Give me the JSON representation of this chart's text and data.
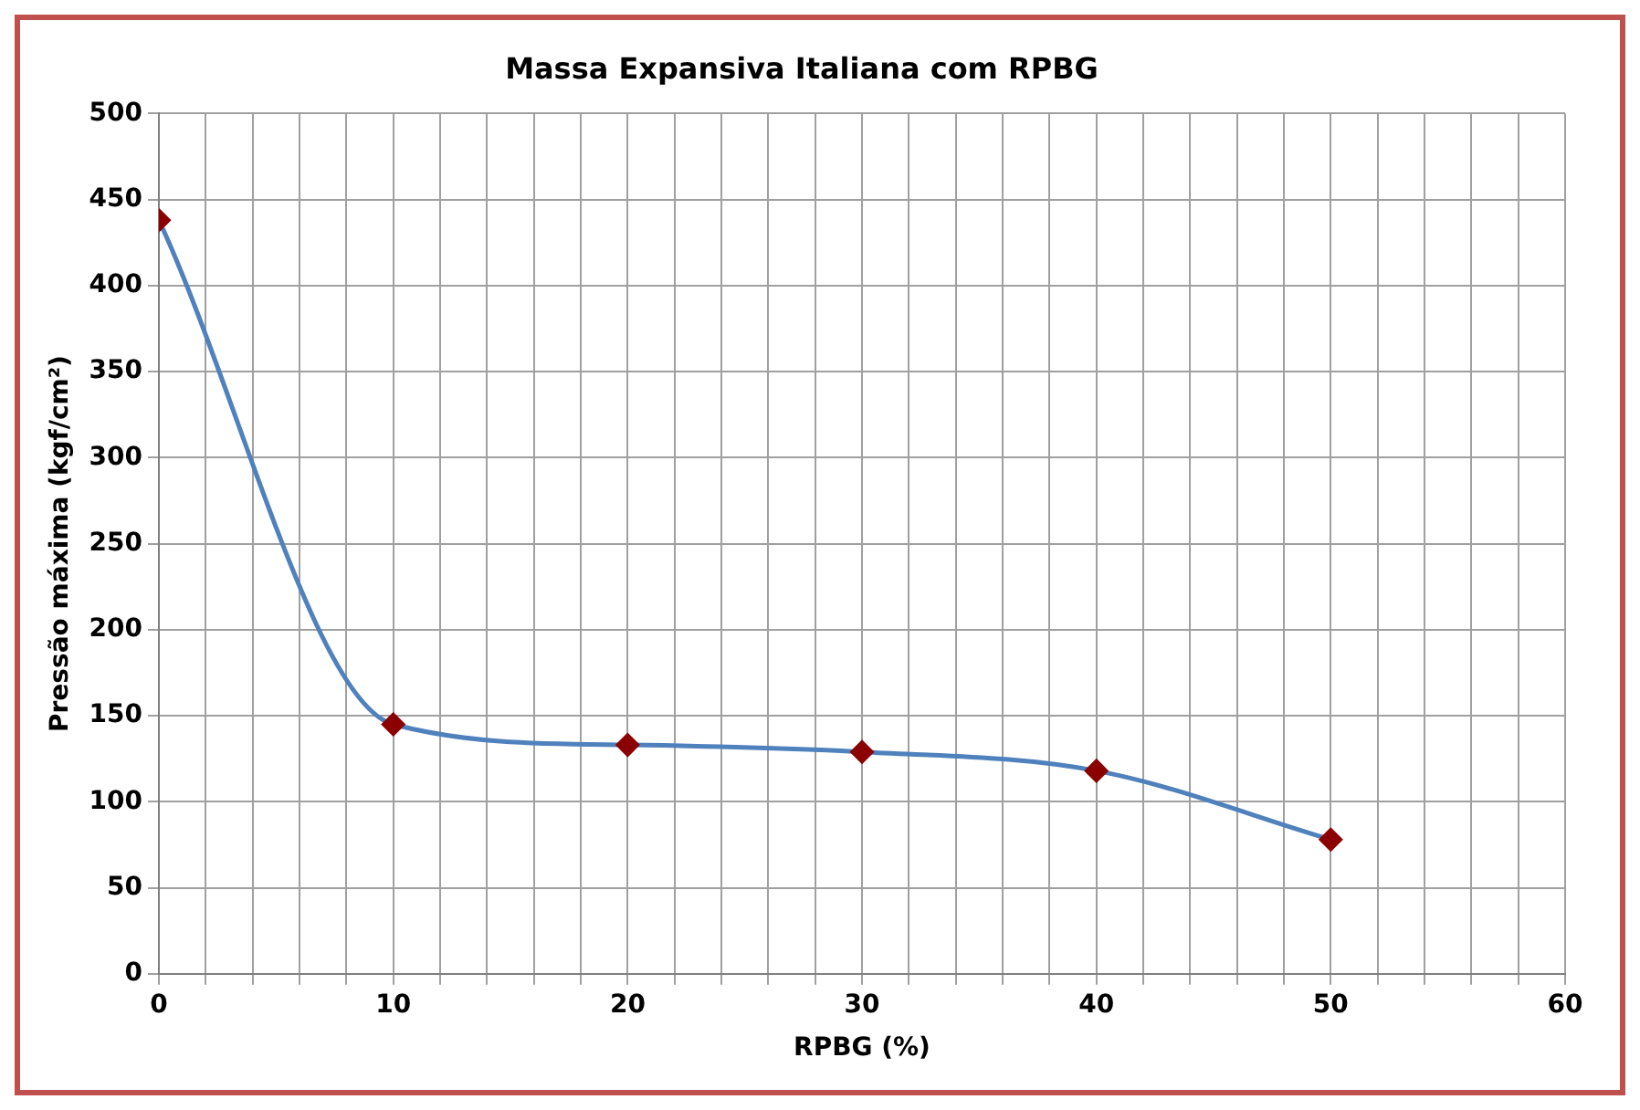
{
  "chart_data": {
    "type": "line",
    "title": "Massa Expansiva Italiana com RPBG",
    "xlabel": "RPBG (%)",
    "ylabel": "Pressão máxima (kgf/cm²)",
    "x": [
      0,
      10,
      20,
      30,
      40,
      50
    ],
    "series": [
      {
        "color": "#4f81bd",
        "values": [
          438,
          145,
          133,
          129,
          118,
          78
        ]
      }
    ],
    "xlim": [
      0,
      60
    ],
    "xticks": [
      0,
      {
        "value": 2,
        "label": null
      },
      {
        "value": 4,
        "label": null
      },
      {
        "value": 6,
        "label": null
      },
      {
        "value": 8,
        "label": null
      },
      10,
      {
        "value": 12,
        "label": null
      },
      {
        "value": 14,
        "label": null
      },
      {
        "value": 16,
        "label": null
      },
      {
        "value": 18,
        "label": null
      },
      20,
      {
        "value": 22,
        "label": null
      },
      {
        "value": 24,
        "label": null
      },
      {
        "value": 26,
        "label": null
      },
      {
        "value": 28,
        "label": null
      },
      30,
      {
        "value": 32,
        "label": null
      },
      {
        "value": 34,
        "label": null
      },
      {
        "value": 36,
        "label": null
      },
      {
        "value": 38,
        "label": null
      },
      40,
      {
        "value": 42,
        "label": null
      },
      {
        "value": 44,
        "label": null
      },
      {
        "value": 46,
        "label": null
      },
      {
        "value": 48,
        "label": null
      },
      50,
      {
        "value": 52,
        "label": null
      },
      {
        "value": 54,
        "label": null
      },
      {
        "value": 56,
        "label": null
      },
      {
        "value": 58,
        "label": null
      },
      60
    ],
    "ylim": [
      0,
      500
    ],
    "yticks": [
      0,
      50,
      100,
      150,
      200,
      250,
      300,
      350,
      400,
      450,
      500
    ],
    "grid": true,
    "legend": false,
    "marker": "diamond",
    "line_style": "solid"
  }
}
